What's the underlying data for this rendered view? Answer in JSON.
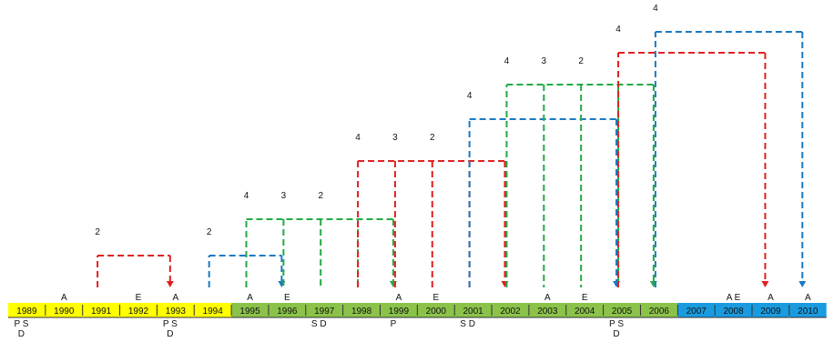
{
  "timeline": {
    "years": [
      "1989",
      "1990",
      "1991",
      "1992",
      "1993",
      "1994",
      "1995",
      "1996",
      "1997",
      "1998",
      "1999",
      "2000",
      "2001",
      "2002",
      "2003",
      "2004",
      "2005",
      "2006",
      "2007",
      "2008",
      "2009",
      "2010"
    ],
    "period_colors": [
      "#ffff00",
      "#ffff00",
      "#ffff00",
      "#ffff00",
      "#ffff00",
      "#ffff00",
      "#8bc34a",
      "#8bc34a",
      "#8bc34a",
      "#8bc34a",
      "#8bc34a",
      "#8bc34a",
      "#8bc34a",
      "#8bc34a",
      "#8bc34a",
      "#8bc34a",
      "#8bc34a",
      "#8bc34a",
      "#1a9be0",
      "#1a9be0",
      "#1a9be0",
      "#1a9be0"
    ],
    "above_marks": [
      {
        "year": "1990",
        "text": "A"
      },
      {
        "year": "1992",
        "text": "E"
      },
      {
        "year": "1993",
        "text": "A"
      },
      {
        "year": "1995",
        "text": "A"
      },
      {
        "year": "1996",
        "text": "E"
      },
      {
        "year": "1999",
        "text": "A"
      },
      {
        "year": "2000",
        "text": "E"
      },
      {
        "year": "2003",
        "text": "A"
      },
      {
        "year": "2004",
        "text": "E"
      },
      {
        "year": "2008",
        "text": "A E"
      },
      {
        "year": "2009",
        "text": "A"
      },
      {
        "year": "2010",
        "text": "A"
      }
    ],
    "below_marks": [
      {
        "year": "1989",
        "lines": [
          "P S",
          "D"
        ]
      },
      {
        "year": "1993",
        "lines": [
          "P S",
          "D"
        ]
      },
      {
        "year": "1997",
        "lines": [
          "S D"
        ]
      },
      {
        "year": "1999",
        "lines": [
          "P"
        ]
      },
      {
        "year": "2001",
        "lines": [
          "S D"
        ]
      },
      {
        "year": "2005",
        "lines": [
          "P S",
          "D"
        ]
      }
    ]
  },
  "arcs": [
    {
      "color": "#e02020",
      "start": "1991",
      "end": "1993",
      "level": 1,
      "labels": [
        "2"
      ]
    },
    {
      "color": "#1a7ac4",
      "start": "1994",
      "end": "1996",
      "level": 1,
      "labels": [
        "2"
      ]
    },
    {
      "color": "#22aa44",
      "start": "1995",
      "end": "1999",
      "level": 2,
      "labels": [
        "4",
        "3",
        "2"
      ],
      "branch_years": [
        "1996",
        "1997",
        "1998"
      ]
    },
    {
      "color": "#e02020",
      "start": "1998",
      "end": "2002",
      "level": 3,
      "labels": [
        "4",
        "3",
        "2"
      ],
      "branch_years": [
        "1999",
        "2000",
        "2001"
      ]
    },
    {
      "color": "#1a7ac4",
      "start": "2001",
      "end": "2005",
      "level": 4,
      "labels": [
        "4"
      ]
    },
    {
      "color": "#22aa44",
      "start": "2002",
      "end": "2006",
      "level": 5,
      "labels": [
        "4",
        "3",
        "2"
      ],
      "branch_years": [
        "2003",
        "2004",
        "2005"
      ]
    },
    {
      "color": "#e02020",
      "start": "2005",
      "end": "2009",
      "level": 6,
      "labels": [
        "4"
      ]
    },
    {
      "color": "#1a7ac4",
      "start": "2006",
      "end": "2010",
      "level": 7,
      "labels": [
        "4"
      ]
    }
  ]
}
